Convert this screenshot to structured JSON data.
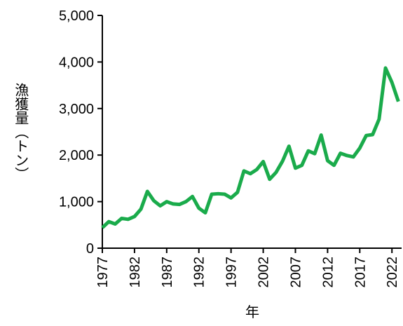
{
  "chart_data": {
    "type": "line",
    "y_label": "漁獲量（トン）",
    "x_label": "年",
    "x": [
      1977,
      1978,
      1979,
      1980,
      1981,
      1982,
      1983,
      1984,
      1985,
      1986,
      1987,
      1988,
      1989,
      1990,
      1991,
      1992,
      1993,
      1994,
      1995,
      1996,
      1997,
      1998,
      1999,
      2000,
      2001,
      2002,
      2003,
      2004,
      2005,
      2006,
      2007,
      2008,
      2009,
      2010,
      2011,
      2012,
      2013,
      2014,
      2015,
      2016,
      2017,
      2018,
      2019,
      2020,
      2021,
      2022,
      2023
    ],
    "series": [
      {
        "color": "#1aab4b",
        "values": [
          440,
          570,
          520,
          640,
          620,
          680,
          840,
          1220,
          1020,
          910,
          1000,
          950,
          940,
          1000,
          1110,
          860,
          760,
          1160,
          1170,
          1160,
          1080,
          1200,
          1660,
          1600,
          1690,
          1860,
          1480,
          1630,
          1870,
          2190,
          1720,
          1780,
          2090,
          2030,
          2430,
          1880,
          1780,
          2040,
          1990,
          1960,
          2150,
          2420,
          2440,
          2770,
          3870,
          3560,
          3150
        ]
      }
    ],
    "xlim": [
      1977,
      2023.5
    ],
    "xticks": [
      1977,
      1982,
      1987,
      1992,
      1997,
      2002,
      2007,
      2012,
      2017,
      2022
    ],
    "ylim": [
      0,
      5000
    ],
    "yticks": [
      0,
      {
        "value": 1000,
        "label": "1,000"
      },
      {
        "value": 2000,
        "label": "2,000"
      },
      {
        "value": 3000,
        "label": "3,000"
      },
      {
        "value": 4000,
        "label": "4,000"
      },
      {
        "value": 5000,
        "label": "5,000"
      }
    ]
  }
}
